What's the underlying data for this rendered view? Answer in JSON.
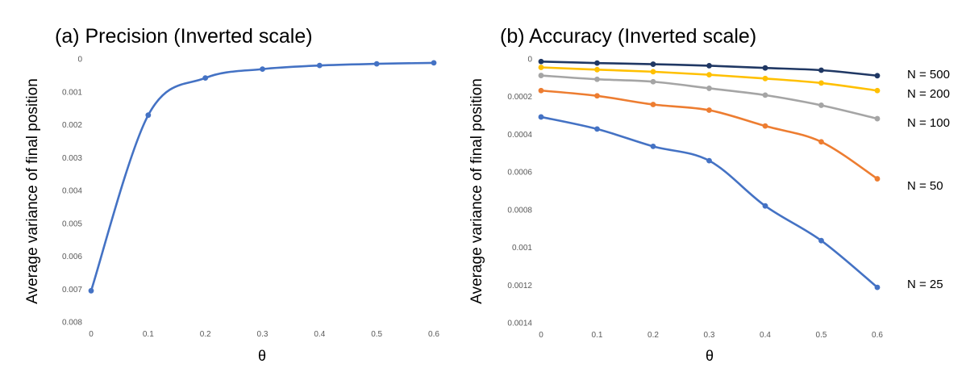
{
  "chart_data": [
    {
      "type": "line",
      "title": "(a) Precision (Inverted scale)",
      "xlabel": "θ",
      "ylabel": "Average variance of final position",
      "x": [
        0,
        0.1,
        0.2,
        0.3,
        0.4,
        0.5,
        0.6
      ],
      "x_tick_labels": [
        "0",
        "0.1",
        "0.2",
        "0.3",
        "0.4",
        "0.5",
        "0.6"
      ],
      "y_tick_labels": [
        "0",
        "0.001",
        "0.002",
        "0.003",
        "0.004",
        "0.005",
        "0.006",
        "0.007",
        "0.008"
      ],
      "xlim": [
        0,
        0.6
      ],
      "ylim": [
        0,
        0.008
      ],
      "y_inverted": true,
      "grid": false,
      "series": [
        {
          "values": [
            0.00705,
            0.00171,
            0.00058,
            0.00031,
            0.0002,
            0.00015,
            0.00012
          ],
          "color": "#4472C4"
        }
      ]
    },
    {
      "type": "line",
      "title": "(b) Accuracy (Inverted scale)",
      "xlabel": "θ",
      "ylabel": "Average variance of final position",
      "x": [
        0,
        0.1,
        0.2,
        0.3,
        0.4,
        0.5,
        0.6
      ],
      "x_tick_labels": [
        "0",
        "0.1",
        "0.2",
        "0.3",
        "0.4",
        "0.5",
        "0.6"
      ],
      "y_tick_labels": [
        "0",
        "0.0002",
        "0.0004",
        "0.0006",
        "0.0008",
        "0.001",
        "0.0012",
        "0.0014"
      ],
      "xlim": [
        0,
        0.6
      ],
      "ylim": [
        0,
        0.0014
      ],
      "y_inverted": true,
      "grid": false,
      "series": [
        {
          "name": "N = 500",
          "values": [
            1.4e-05,
            2.2e-05,
            2.8e-05,
            3.6e-05,
            4.8e-05,
            6e-05,
            8.9e-05
          ],
          "color": "#203864"
        },
        {
          "name": "N = 200",
          "values": [
            4.5e-05,
            5.7e-05,
            6.8e-05,
            8.4e-05,
            0.000104,
            0.000128,
            0.000168
          ],
          "color": "#FFC000"
        },
        {
          "name": "N = 100",
          "values": [
            8.8e-05,
            0.000108,
            0.000121,
            0.000156,
            0.000192,
            0.000246,
            0.000317
          ],
          "color": "#A5A5A5"
        },
        {
          "name": "N = 50",
          "values": [
            0.000168,
            0.000196,
            0.000242,
            0.000272,
            0.000356,
            0.00044,
            0.000636
          ],
          "color": "#ED7D31"
        },
        {
          "name": "N = 25",
          "values": [
            0.000308,
            0.000372,
            0.000464,
            0.00054,
            0.00078,
            0.000964,
            0.001212
          ],
          "color": "#4472C4"
        }
      ]
    }
  ]
}
